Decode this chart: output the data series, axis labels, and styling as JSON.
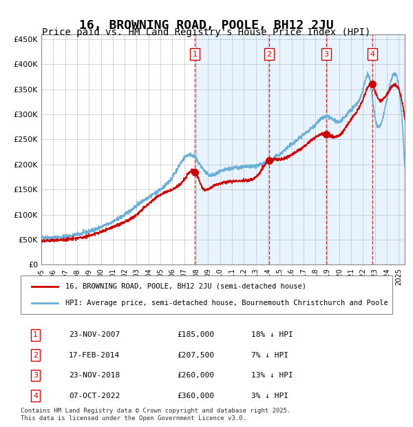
{
  "title": "16, BROWNING ROAD, POOLE, BH12 2JU",
  "subtitle": "Price paid vs. HM Land Registry's House Price Index (HPI)",
  "title_fontsize": 13,
  "subtitle_fontsize": 10,
  "xlim": [
    1995.0,
    2025.5
  ],
  "ylim": [
    0,
    460000
  ],
  "yticks": [
    0,
    50000,
    100000,
    150000,
    200000,
    250000,
    300000,
    350000,
    400000,
    450000
  ],
  "ytick_labels": [
    "£0",
    "£50K",
    "£100K",
    "£150K",
    "£200K",
    "£250K",
    "£300K",
    "£350K",
    "£400K",
    "£450K"
  ],
  "hpi_color": "#6baed6",
  "price_color": "#cc0000",
  "bg_color": "#ddeeff",
  "plot_bg": "#ffffff",
  "grid_color": "#aaaaaa",
  "sales": [
    {
      "num": 1,
      "date_x": 2007.9,
      "price": 185000,
      "label": "23-NOV-2007",
      "price_label": "£185,000",
      "pct": "18% ↓ HPI"
    },
    {
      "num": 2,
      "date_x": 2014.1,
      "price": 207500,
      "label": "17-FEB-2014",
      "price_label": "£207,500",
      "pct": "7% ↓ HPI"
    },
    {
      "num": 3,
      "date_x": 2018.9,
      "price": 260000,
      "label": "23-NOV-2018",
      "price_label": "£260,000",
      "pct": "13% ↓ HPI"
    },
    {
      "num": 4,
      "date_x": 2022.77,
      "price": 360000,
      "label": "07-OCT-2022",
      "price_label": "£360,000",
      "pct": "3% ↓ HPI"
    }
  ],
  "legend_line1": "16, BROWNING ROAD, POOLE, BH12 2JU (semi-detached house)",
  "legend_line2": "HPI: Average price, semi-detached house, Bournemouth Christchurch and Poole",
  "table_rows": [
    [
      "1",
      "23-NOV-2007",
      "£185,000",
      "18% ↓ HPI"
    ],
    [
      "2",
      "17-FEB-2014",
      "£207,500",
      "7% ↓ HPI"
    ],
    [
      "3",
      "23-NOV-2018",
      "£260,000",
      "13% ↓ HPI"
    ],
    [
      "4",
      "07-OCT-2022",
      "£360,000",
      "3% ↓ HPI"
    ]
  ],
  "footer": "Contains HM Land Registry data © Crown copyright and database right 2025.\nThis data is licensed under the Open Government Licence v3.0."
}
